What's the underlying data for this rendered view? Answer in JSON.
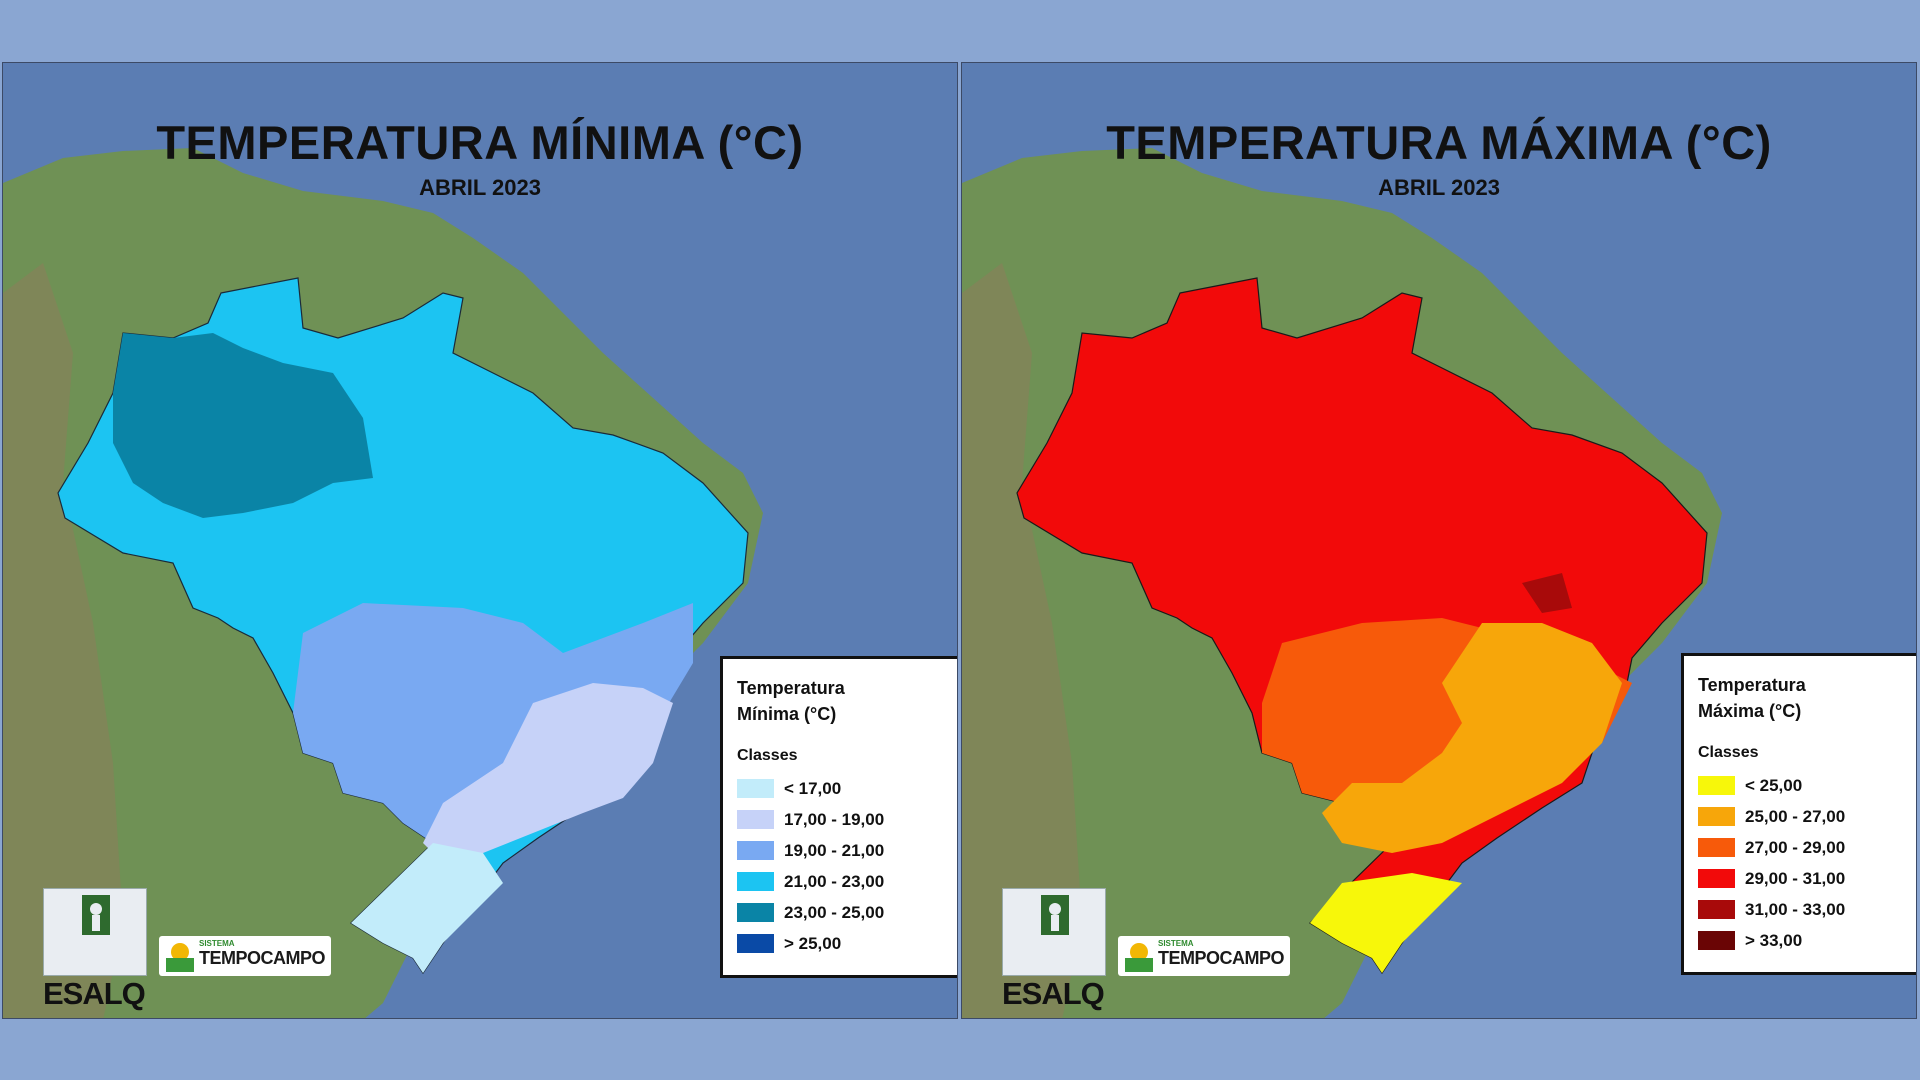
{
  "maps": [
    {
      "id": "min",
      "title": "TEMPERATURA MÍNIMA (°C)",
      "subtitle": "ABRIL 2023",
      "legend": {
        "title": "Temperatura Mínima (°C)",
        "classes_label": "Classes",
        "classes": [
          {
            "label": "< 17,00",
            "color": "#c2ecfa"
          },
          {
            "label": "17,00 - 19,00",
            "color": "#c6d2f8"
          },
          {
            "label": "19,00 - 21,00",
            "color": "#79a9f2"
          },
          {
            "label": "21,00 - 23,00",
            "color": "#1cc4f2"
          },
          {
            "label": "23,00 - 25,00",
            "color": "#0a84a6"
          },
          {
            "label": "> 25,00",
            "color": "#0a4aa6"
          }
        ]
      }
    },
    {
      "id": "max",
      "title": "TEMPERATURA MÁXIMA (°C)",
      "subtitle": "ABRIL 2023",
      "legend": {
        "title": "Temperatura Máxima (°C)",
        "classes_label": "Classes",
        "classes": [
          {
            "label": "< 25,00",
            "color": "#f7f70a"
          },
          {
            "label": "25,00 - 27,00",
            "color": "#f7a60a"
          },
          {
            "label": "27,00 - 29,00",
            "color": "#f75a0a"
          },
          {
            "label": "29,00 - 31,00",
            "color": "#f20a0a"
          },
          {
            "label": "31,00 - 33,00",
            "color": "#a80a0a"
          },
          {
            "label": "> 33,00",
            "color": "#6a0505"
          }
        ]
      }
    }
  ],
  "logos": {
    "esalq": "ESALQ",
    "tempocampo_small": "SISTEMA",
    "tempocampo_big": "TEMPOCAMPO"
  },
  "colors": {
    "ocean": "#5b7db3",
    "land": "#6f9155",
    "background": "#8aa6d2"
  }
}
